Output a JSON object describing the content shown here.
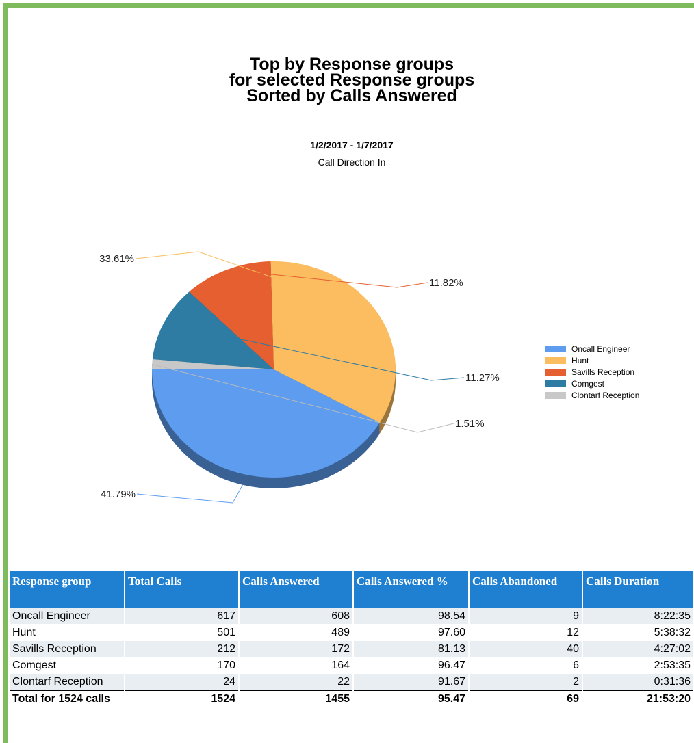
{
  "chart_data": {
    "type": "pie",
    "title": [
      "Top by Response groups",
      "for selected Response groups",
      "Sorted by Calls Answered"
    ],
    "subtitle": [
      "1/2/2017 - 1/7/2017",
      "Call Direction In"
    ],
    "categories": [
      "Oncall Engineer",
      "Hunt",
      "Savills Reception",
      "Comgest",
      "Clontarf Reception"
    ],
    "values": [
      41.79,
      33.61,
      11.82,
      11.27,
      1.51
    ],
    "value_labels": [
      "41.79%",
      "33.61%",
      "11.82%",
      "11.27%",
      "1.51%"
    ],
    "colors": [
      "#5d9cef",
      "#fbbd5f",
      "#e55f31",
      "#2e7ba3",
      "#c8c8c8"
    ],
    "legend": "right"
  },
  "table": {
    "headers": [
      "Response group",
      "Total Calls",
      "Calls Answered",
      "Calls Answered %",
      "Calls Abandoned",
      "Calls Duration"
    ],
    "rows": [
      [
        "Oncall Engineer",
        "617",
        "608",
        "98.54",
        "9",
        "8:22:35"
      ],
      [
        "Hunt",
        "501",
        "489",
        "97.60",
        "12",
        "5:38:32"
      ],
      [
        "Savills Reception",
        "212",
        "172",
        "81.13",
        "40",
        "4:27:02"
      ],
      [
        "Comgest",
        "170",
        "164",
        "96.47",
        "6",
        "2:53:35"
      ],
      [
        "Clontarf Reception",
        "24",
        "22",
        "91.67",
        "2",
        "0:31:36"
      ]
    ],
    "total": [
      "Total for 1524 calls",
      "1524",
      "1455",
      "95.47",
      "69",
      "21:53:20"
    ]
  }
}
